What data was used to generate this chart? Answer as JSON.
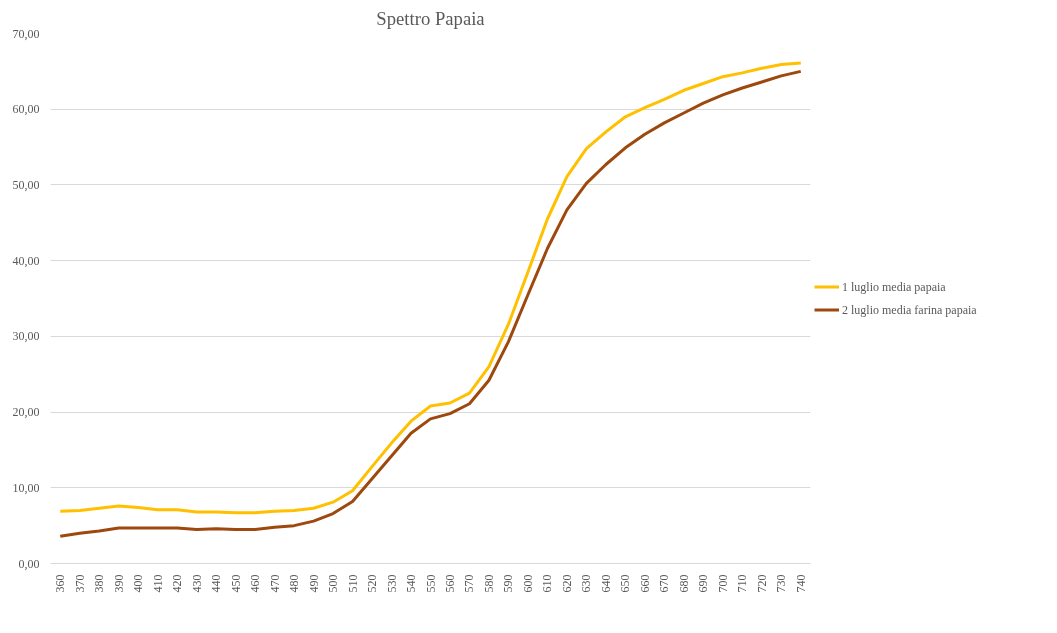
{
  "chart_data": {
    "type": "line",
    "title": "Spettro Papaia",
    "categories": [
      "360",
      "370",
      "380",
      "390",
      "400",
      "410",
      "420",
      "430",
      "440",
      "450",
      "460",
      "470",
      "480",
      "490",
      "500",
      "510",
      "520",
      "530",
      "540",
      "550",
      "560",
      "570",
      "580",
      "590",
      "600",
      "610",
      "620",
      "630",
      "640",
      "650",
      "660",
      "670",
      "680",
      "690",
      "700",
      "710",
      "720",
      "730",
      "740"
    ],
    "series": [
      {
        "name": "1 luglio media papaia",
        "color": "#ffc000",
        "values": [
          6.9,
          7.0,
          7.3,
          7.6,
          7.4,
          7.1,
          7.1,
          6.8,
          6.8,
          6.7,
          6.7,
          6.9,
          7.0,
          7.3,
          8.1,
          9.6,
          12.8,
          15.9,
          18.8,
          20.8,
          21.2,
          22.5,
          26.0,
          31.6,
          38.5,
          45.5,
          51.1,
          54.8,
          57.0,
          59.0,
          60.2,
          61.3,
          62.5,
          63.4,
          64.3,
          64.8,
          65.4,
          65.9,
          66.1
        ]
      },
      {
        "name": "2 luglio media farina papaia",
        "color": "#9e480e",
        "values": [
          3.6,
          4.0,
          4.3,
          4.7,
          4.7,
          4.7,
          4.7,
          4.5,
          4.6,
          4.5,
          4.5,
          4.8,
          5.0,
          5.6,
          6.6,
          8.2,
          11.2,
          14.2,
          17.2,
          19.1,
          19.8,
          21.1,
          24.2,
          29.3,
          35.5,
          41.6,
          46.7,
          50.2,
          52.7,
          54.9,
          56.7,
          58.2,
          59.5,
          60.8,
          61.9,
          62.8,
          63.6,
          64.4,
          65.0
        ]
      }
    ],
    "ylim": [
      0,
      70
    ],
    "yticks": [
      {
        "value": 0,
        "label": "0,00"
      },
      {
        "value": 10,
        "label": "10,00"
      },
      {
        "value": 20,
        "label": "20,00"
      },
      {
        "value": 30,
        "label": "30,00"
      },
      {
        "value": 40,
        "label": "40,00"
      },
      {
        "value": 50,
        "label": "50,00"
      },
      {
        "value": 60,
        "label": "60,00"
      },
      {
        "value": 70,
        "label": "70,00"
      }
    ],
    "grid": "y",
    "legend": "right",
    "marker": "none",
    "line_style": "solid"
  }
}
